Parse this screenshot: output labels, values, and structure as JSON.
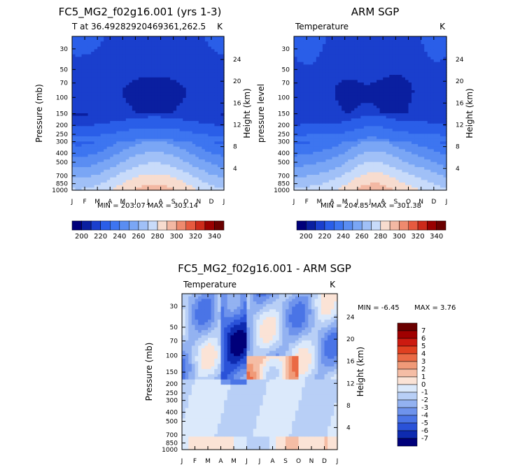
{
  "chart_data": [
    {
      "type": "heatmap",
      "title": "FC5_MG2_f02g16.001 (yrs 1-3)",
      "subtitle": "T at 36.49282920469361,262.5",
      "unit": "K",
      "xlabel": "",
      "ylabel": "Pressure (mb)",
      "right_label": "Height (km)",
      "x_ticks": [
        "J",
        "F",
        "M",
        "A",
        "M",
        "J",
        "J",
        "A",
        "S",
        "O",
        "N",
        "D",
        "J"
      ],
      "y_ticks": [
        30,
        50,
        70,
        100,
        150,
        200,
        250,
        300,
        400,
        500,
        700,
        850,
        1000
      ],
      "height_ticks": [
        24,
        20,
        16,
        12,
        8,
        4
      ],
      "min_label": "MIN = 203.07",
      "max_label": "MAX = 303.14",
      "min": 203.07,
      "max": 303.14,
      "levels": [
        200,
        210,
        220,
        230,
        240,
        250,
        260,
        270,
        280,
        290,
        300,
        310,
        320,
        330,
        340
      ],
      "colorbar_labels": [
        "200",
        "220",
        "240",
        "260",
        "280",
        "300",
        "320",
        "340"
      ]
    },
    {
      "type": "heatmap",
      "title": "ARM SGP",
      "subtitle": "Temperature",
      "unit": "K",
      "xlabel": "",
      "ylabel": "pressure level",
      "right_label": "Height (km)",
      "x_ticks": [
        "J",
        "F",
        "M",
        "A",
        "M",
        "J",
        "J",
        "A",
        "S",
        "O",
        "N",
        "D",
        "J"
      ],
      "y_ticks": [
        30,
        50,
        70,
        100,
        150,
        200,
        250,
        300,
        400,
        500,
        700,
        850,
        1000
      ],
      "height_ticks": [
        24,
        20,
        16,
        12,
        8,
        4
      ],
      "min_label": "MIN = 204.85",
      "max_label": "MAX = 301.38",
      "min": 204.85,
      "max": 301.38,
      "levels": [
        200,
        210,
        220,
        230,
        240,
        250,
        260,
        270,
        280,
        290,
        300,
        310,
        320,
        330,
        340
      ],
      "colorbar_labels": [
        "200",
        "220",
        "240",
        "260",
        "280",
        "300",
        "320",
        "340"
      ]
    },
    {
      "type": "heatmap",
      "title": "FC5_MG2_f02g16.001 - ARM SGP",
      "subtitle": "Temperature",
      "unit": "K",
      "xlabel": "",
      "ylabel": "Pressure (mb)",
      "right_label": "Height (km)",
      "x_ticks": [
        "J",
        "F",
        "M",
        "A",
        "M",
        "J",
        "J",
        "A",
        "S",
        "O",
        "N",
        "D",
        "J"
      ],
      "y_ticks": [
        30,
        50,
        70,
        100,
        150,
        200,
        250,
        300,
        400,
        500,
        700,
        850,
        1000
      ],
      "height_ticks": [
        24,
        20,
        16,
        12,
        8,
        4
      ],
      "min_label": "MIN =   -6.45",
      "max_label": "MAX =    3.76",
      "min": -6.45,
      "max": 3.76,
      "levels": [
        -7,
        -6,
        -5,
        -4,
        -3,
        -2,
        -1,
        0,
        1,
        2,
        3,
        4,
        5,
        6,
        7
      ],
      "colorbar_labels": [
        "7",
        "6",
        "5",
        "4",
        "3",
        "2",
        "1",
        "0",
        "-1",
        "-2",
        "-3",
        "-4",
        "-5",
        "-6",
        "-7"
      ]
    }
  ],
  "colors": {
    "abs_scale": [
      "#00007a",
      "#0a1fa0",
      "#1a3fcd",
      "#2a5ee8",
      "#3d75f0",
      "#5a8df2",
      "#7aa6f5",
      "#a0c0f7",
      "#c8dbfa",
      "#f7dccf",
      "#f3b8a3",
      "#ee8a6e",
      "#e65a3f",
      "#cc2a1a",
      "#990000",
      "#6a0000"
    ],
    "diff_scale": [
      "#6a0000",
      "#a00000",
      "#cc1a10",
      "#e04020",
      "#ea6a45",
      "#f09a78",
      "#f5bda5",
      "#fbe3d6",
      "#dbe9fb",
      "#b8cff6",
      "#93b2f1",
      "#6e93ec",
      "#4a74e6",
      "#2a52d8",
      "#0e2bb0",
      "#00007a"
    ]
  }
}
